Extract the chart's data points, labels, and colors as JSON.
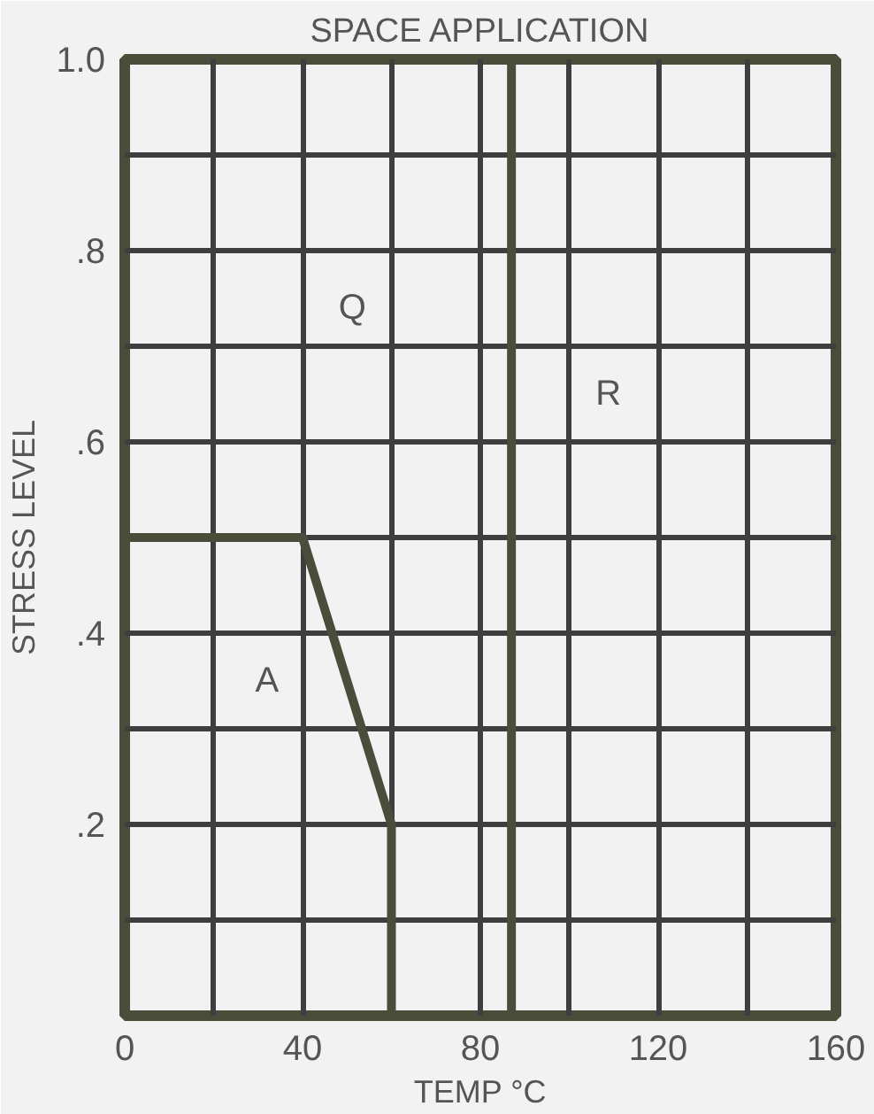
{
  "chart_data": {
    "type": "line",
    "title": "SPACE APPLICATION",
    "xlabel": "TEMP °C",
    "ylabel": "STRESS LEVEL",
    "x": [
      0,
      40,
      60,
      60
    ],
    "series": [
      {
        "color": "#4a4d3a",
        "values": [
          0.5,
          0.5,
          0.2,
          0
        ]
      }
    ],
    "xlim": [
      0,
      160
    ],
    "ylim": [
      0,
      1
    ],
    "xticks": [
      0,
      {
        "value": 20,
        "label": null
      },
      40,
      {
        "value": 60,
        "label": null
      },
      80,
      {
        "value": 100,
        "label": null
      },
      120,
      {
        "value": 140,
        "label": null
      },
      160
    ],
    "yticks": [
      {
        "value": 0,
        "label": null
      },
      {
        "value": 0.1,
        "label": null
      },
      {
        "value": 0.2,
        "label": ".2"
      },
      {
        "value": 0.3,
        "label": null
      },
      {
        "value": 0.4,
        "label": ".4"
      },
      {
        "value": 0.5,
        "label": null
      },
      {
        "value": 0.6,
        "label": ".6"
      },
      {
        "value": 0.7,
        "label": null
      },
      {
        "value": 0.8,
        "label": ".8"
      },
      {
        "value": 0.9,
        "label": null
      },
      {
        "value": 1,
        "label": "1.0"
      }
    ],
    "ref_lines": [
      {
        "axis": "x",
        "value": 87,
        "label": null,
        "color": "#4a4d3a"
      }
    ],
    "annotations": [
      "Q",
      "R",
      "A"
    ],
    "grid": true,
    "line_style": "solid",
    "marker": "none"
  }
}
